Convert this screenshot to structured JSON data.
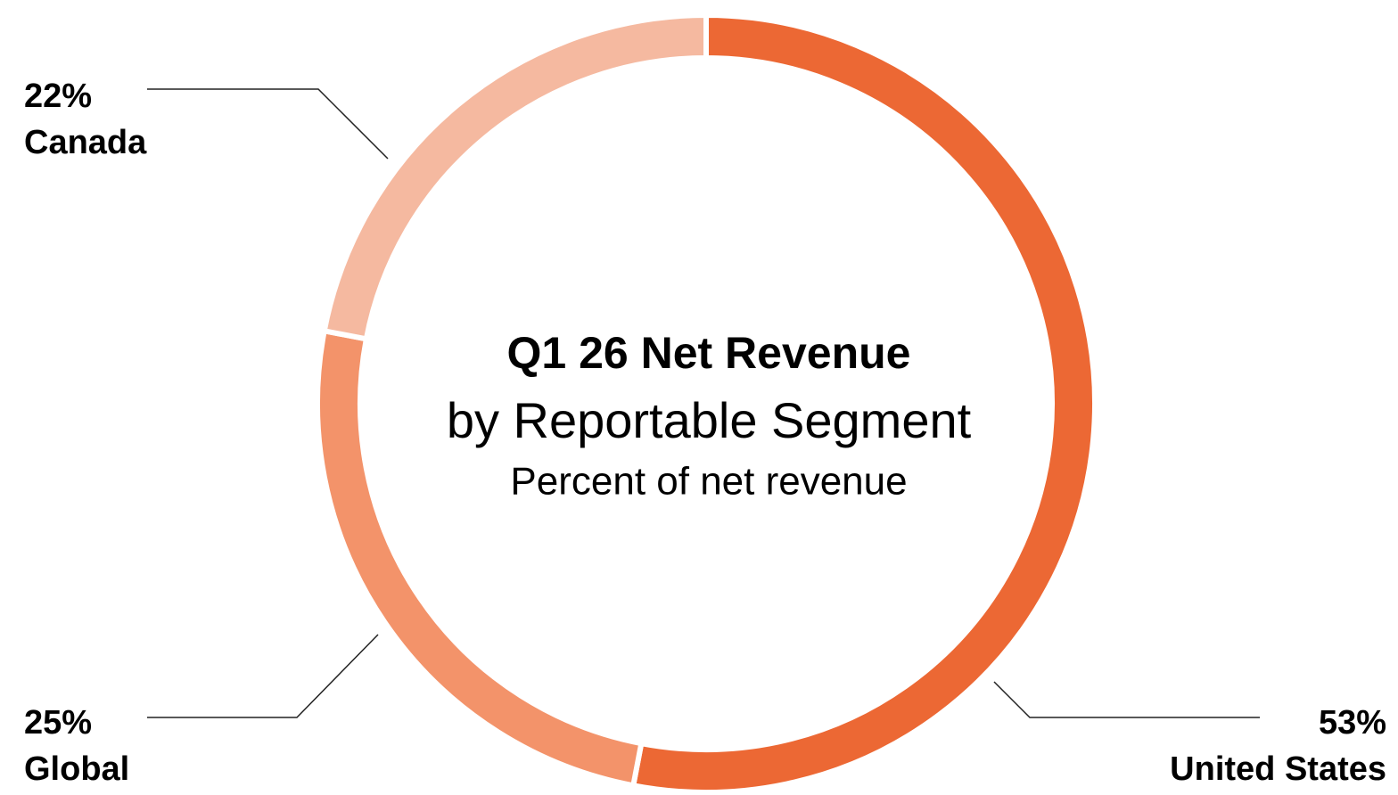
{
  "chart_data": {
    "type": "pie",
    "donut": true,
    "title": "Q1 26 Net Revenue",
    "subtitle": "by Reportable Segment",
    "caption": "Percent of net revenue",
    "categories": [
      "United States",
      "Global",
      "Canada"
    ],
    "values": [
      53,
      25,
      22
    ],
    "value_labels": [
      "53%",
      "25%",
      "22%"
    ],
    "colors": [
      "#ec6834",
      "#f3936a",
      "#f5b9a0"
    ]
  }
}
